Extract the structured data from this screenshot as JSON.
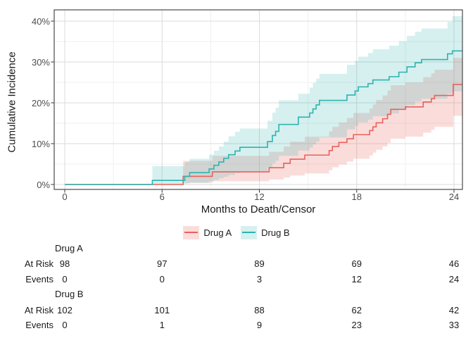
{
  "figure": {
    "y_axis": {
      "title": "Cumulative Incidence",
      "tick_labels": [
        "0%",
        "10%",
        "20%",
        "30%",
        "40%"
      ],
      "tick_values": [
        0,
        10,
        20,
        30,
        40
      ]
    },
    "x_axis": {
      "title": "Months to Death/Censor",
      "tick_labels": [
        "0",
        "6",
        "12",
        "18",
        "24"
      ],
      "tick_values": [
        0,
        6,
        12,
        18,
        24
      ]
    },
    "legend": {
      "items": [
        {
          "label": "Drug A",
          "line_color": "#E8625C",
          "fill_color": "rgba(232,98,92,0.22)"
        },
        {
          "label": "Drug B",
          "line_color": "#2DB3AF",
          "fill_color": "rgba(45,179,175,0.20)"
        }
      ]
    },
    "colors": {
      "panel_border": "#4a4a4a",
      "grid_major": "#dbdbdb",
      "grid_minor": "#efefef",
      "tick_text": "#4d4d4d"
    }
  },
  "chart_data": {
    "type": "line",
    "subtype": "step-cumulative-incidence-with-confidence-bands",
    "title": "",
    "xlabel": "Months to Death/Censor",
    "ylabel": "Cumulative Incidence",
    "xlim": [
      -0.65,
      24.52
    ],
    "ylim": [
      -1.2,
      42.8
    ],
    "x_ticks": [
      0,
      6,
      12,
      18,
      24
    ],
    "y_ticks_percent": [
      0,
      10,
      20,
      30,
      40
    ],
    "grid": "major and minor, light gray on white",
    "legend_position": "bottom",
    "series": [
      {
        "name": "Drug A",
        "color": "#E8625C",
        "band_color": "rgba(232,98,92,0.22)",
        "start": {
          "x": 0,
          "y": 0
        },
        "x": [
          7.3,
          9.1,
          12.6,
          13.5,
          13.9,
          14.8,
          16.3,
          16.5,
          16.9,
          17.4,
          17.8,
          18.8,
          19.0,
          19.2,
          19.6,
          19.9,
          20.1,
          21.0,
          22.1,
          22.6,
          22.8,
          23.95
        ],
        "y": [
          2.0,
          3.1,
          4.1,
          5.2,
          6.2,
          7.2,
          8.3,
          9.3,
          10.3,
          11.2,
          12.2,
          13.2,
          14.1,
          15.1,
          16.1,
          17.2,
          18.4,
          19.0,
          20.2,
          21.0,
          21.8,
          24.5
        ],
        "lower": [
          0.4,
          0.8,
          1.2,
          1.7,
          2.2,
          2.7,
          3.5,
          4.2,
          4.9,
          5.6,
          6.3,
          7.1,
          7.8,
          8.5,
          9.3,
          10.2,
          11.2,
          11.7,
          12.7,
          13.4,
          14.1,
          16.8
        ],
        "upper": [
          5.8,
          7.0,
          8.0,
          9.3,
          10.5,
          11.7,
          13.0,
          14.1,
          15.2,
          16.3,
          17.5,
          18.6,
          19.6,
          20.7,
          21.8,
          23.0,
          24.3,
          25.0,
          26.3,
          27.2,
          28.1,
          31.0
        ]
      },
      {
        "name": "Drug B",
        "color": "#2DB3AF",
        "band_color": "rgba(45,179,175,0.20)",
        "start": {
          "x": 0,
          "y": 0
        },
        "x": [
          5.4,
          7.4,
          7.7,
          8.9,
          9.2,
          9.5,
          9.8,
          10.1,
          10.5,
          10.8,
          12.5,
          12.8,
          13.0,
          13.2,
          14.4,
          15.1,
          15.3,
          15.5,
          15.7,
          17.4,
          17.9,
          18.1,
          18.7,
          19.0,
          20.0,
          20.6,
          21.1,
          21.6,
          22.0,
          23.6,
          23.9
        ],
        "y": [
          1.0,
          2.0,
          2.9,
          3.8,
          4.7,
          5.5,
          6.4,
          7.3,
          8.2,
          9.1,
          10.5,
          12.0,
          13.0,
          14.7,
          16.5,
          17.5,
          18.5,
          19.5,
          20.6,
          21.9,
          22.9,
          23.9,
          24.7,
          25.6,
          26.4,
          27.5,
          28.8,
          29.8,
          30.6,
          32.0,
          32.7
        ],
        "lower": [
          0.0,
          0.2,
          0.4,
          0.8,
          1.1,
          1.5,
          1.9,
          2.3,
          2.8,
          3.2,
          4.2,
          5.2,
          5.8,
          7.0,
          8.3,
          9.0,
          9.8,
          10.5,
          11.5,
          13.5,
          14.3,
          15.2,
          15.9,
          16.7,
          17.4,
          18.3,
          19.4,
          20.3,
          21.0,
          22.2,
          22.8
        ],
        "upper": [
          4.5,
          5.5,
          6.3,
          7.3,
          8.3,
          9.3,
          10.5,
          11.8,
          12.9,
          13.7,
          15.6,
          17.6,
          18.8,
          20.6,
          22.2,
          23.7,
          24.9,
          25.9,
          27.1,
          29.3,
          30.3,
          31.3,
          32.2,
          33.1,
          34.0,
          35.1,
          36.4,
          37.4,
          38.2,
          39.8,
          41.2
        ]
      }
    ]
  },
  "risk_table": {
    "time_points": [
      0,
      6,
      12,
      18,
      24
    ],
    "groups": [
      {
        "name": "Drug A",
        "rows": [
          {
            "label": "At Risk",
            "values": [
              98,
              97,
              89,
              69,
              46
            ]
          },
          {
            "label": "Events",
            "values": [
              0,
              0,
              3,
              12,
              24
            ]
          }
        ]
      },
      {
        "name": "Drug B",
        "rows": [
          {
            "label": "At Risk",
            "values": [
              102,
              101,
              88,
              62,
              42
            ]
          },
          {
            "label": "Events",
            "values": [
              0,
              1,
              9,
              23,
              33
            ]
          }
        ]
      }
    ]
  }
}
